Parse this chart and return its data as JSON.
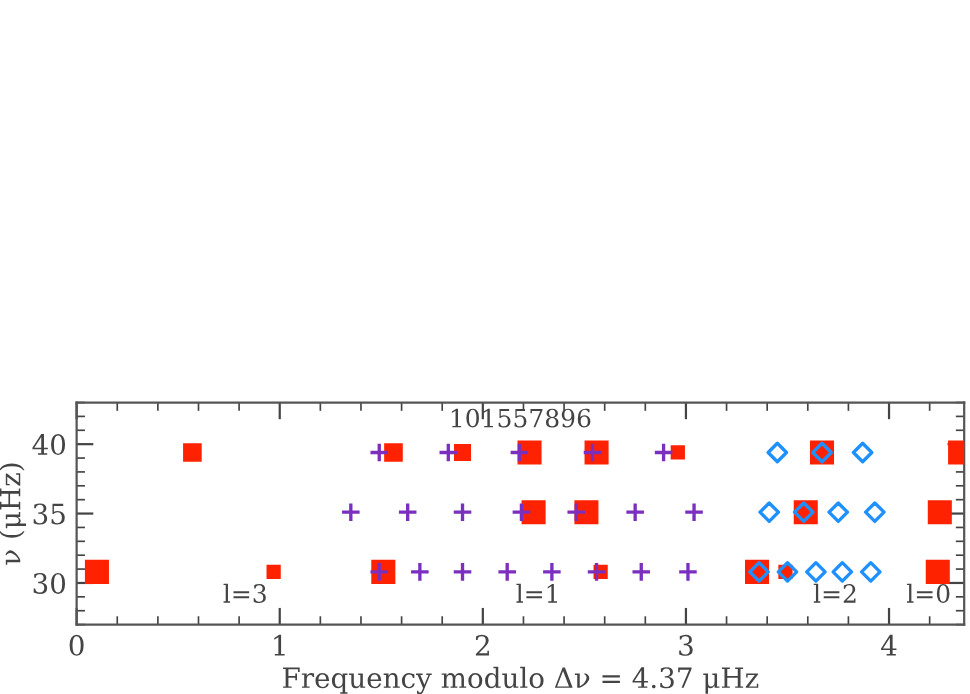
{
  "chart_data": {
    "type": "scatter",
    "xlabel": "Frequency modulo Δν = 4.37 μHz",
    "ylabel": "ν (μHz)",
    "xlim": [
      0,
      4.37
    ],
    "ylim": [
      27,
      43
    ],
    "xticks": [
      0,
      1,
      2,
      3,
      4
    ],
    "yticks": [
      30,
      35,
      40
    ],
    "grid": false,
    "series": [
      {
        "marker": "cross",
        "color": "#7b2fbe",
        "x": [
          1.49,
          1.83,
          2.18,
          2.54,
          2.89,
          1.35,
          1.63,
          1.9,
          2.19,
          2.46,
          2.75,
          3.04,
          1.49,
          1.69,
          1.9,
          2.12,
          2.34,
          2.56,
          2.78,
          3.01
        ],
        "values": [
          39.4,
          39.4,
          39.4,
          39.4,
          39.4,
          35.1,
          35.1,
          35.1,
          35.1,
          35.1,
          35.1,
          35.1,
          30.8,
          30.8,
          30.8,
          30.8,
          30.8,
          30.8,
          30.8,
          30.8
        ]
      },
      {
        "type": "bubble",
        "marker": "square",
        "color": "#ff2200",
        "x": [
          0.57,
          1.56,
          1.9,
          2.23,
          2.56,
          2.96,
          3.67,
          4.35,
          2.25,
          2.51,
          3.59,
          4.25,
          0.1,
          0.97,
          1.51,
          2.58,
          3.35,
          3.49,
          4.24
        ],
        "values": [
          39.4,
          39.4,
          39.4,
          39.4,
          39.4,
          39.4,
          39.4,
          39.4,
          35.1,
          35.1,
          35.1,
          35.1,
          30.8,
          30.8,
          30.8,
          30.8,
          30.8,
          30.8,
          30.8
        ],
        "sizes": [
          0.6,
          0.6,
          0.5,
          1,
          1,
          0.35,
          1,
          1,
          1,
          1,
          1,
          1,
          1,
          0.35,
          1,
          0.35,
          1,
          0.35,
          1
        ]
      },
      {
        "marker": "diamond",
        "color": "#1e90ff",
        "x": [
          3.45,
          3.67,
          3.87,
          3.41,
          3.58,
          3.75,
          3.93,
          3.36,
          3.5,
          3.64,
          3.77,
          3.91
        ],
        "values": [
          39.4,
          39.4,
          39.4,
          35.1,
          35.1,
          35.1,
          35.1,
          30.8,
          30.8,
          30.8,
          30.8,
          30.8
        ]
      }
    ],
    "annotations": [
      "101557896",
      "l=3",
      "l=1",
      "l=2",
      "l=0"
    ]
  }
}
